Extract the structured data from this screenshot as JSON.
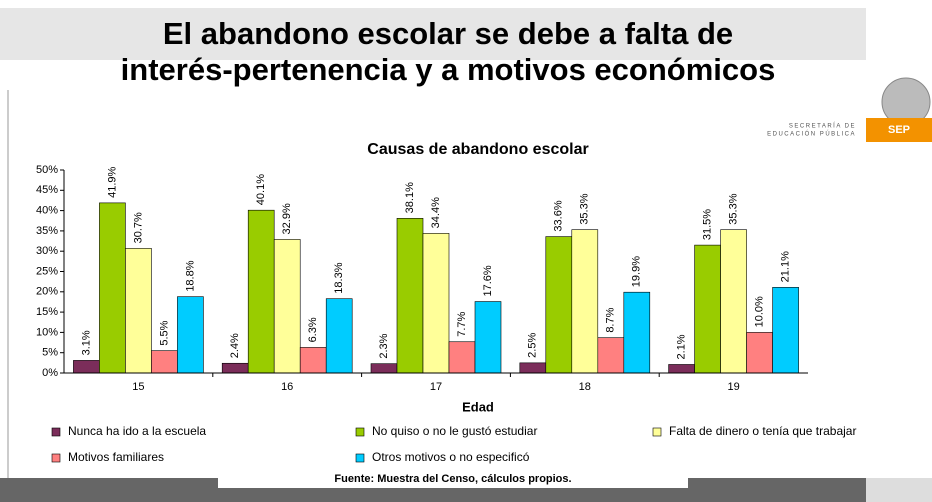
{
  "slide": {
    "title_line1": "El abandono escolar se debe a falta de",
    "title_line2": "interés-pertenencia y a motivos económicos",
    "agency_line1": "SECRETARÍA DE",
    "agency_line2": "EDUCACIÓN PÚBLICA",
    "logo": "SEP",
    "source": "Fuente: Muestra del Censo, cálculos propios."
  },
  "chart_data": {
    "type": "bar",
    "title": "Causas de abandono escolar",
    "x_label": "Edad",
    "categories": [
      "15",
      "16",
      "17",
      "18",
      "19"
    ],
    "ylim": [
      0,
      50
    ],
    "yticks": [
      {
        "value": 0,
        "label": "0%"
      },
      {
        "value": 5,
        "label": "5%"
      },
      {
        "value": 10,
        "label": "10%"
      },
      {
        "value": 15,
        "label": "15%"
      },
      {
        "value": 20,
        "label": "20%"
      },
      {
        "value": 25,
        "label": "25%"
      },
      {
        "value": 30,
        "label": "30%"
      },
      {
        "value": 35,
        "label": "35%"
      },
      {
        "value": 40,
        "label": "40%"
      },
      {
        "value": 45,
        "label": "45%"
      },
      {
        "value": 50,
        "label": "50%"
      }
    ],
    "series": [
      {
        "name": "Nunca ha ido a la escuela",
        "color": "#7b2d5a",
        "values": [
          3.1,
          2.4,
          2.3,
          2.5,
          2.1
        ],
        "value_labels": [
          "3.1%",
          "2.4%",
          "2.3%",
          "2.5%",
          "2.1%"
        ]
      },
      {
        "name": "No quiso o no le gustó estudiar",
        "color": "#99cc00",
        "values": [
          41.9,
          40.1,
          38.1,
          33.6,
          31.5
        ],
        "value_labels": [
          "41.9%",
          "40.1%",
          "38.1%",
          "33.6%",
          "31.5%"
        ]
      },
      {
        "name": "Falta de dinero o tenía que trabajar",
        "color": "#ffff99",
        "values": [
          30.7,
          32.9,
          34.4,
          35.3,
          35.3
        ],
        "value_labels": [
          "30.7%",
          "32.9%",
          "34.4%",
          "35.3%",
          "35.3%"
        ]
      },
      {
        "name": "Motivos familiares",
        "color": "#ff8080",
        "values": [
          5.5,
          6.3,
          7.7,
          8.7,
          10.0
        ],
        "value_labels": [
          "5.5%",
          "6.3%",
          "7.7%",
          "8.7%",
          "10.0%"
        ]
      },
      {
        "name": "Otros motivos o no especificó",
        "color": "#00ccff",
        "values": [
          18.8,
          18.3,
          17.6,
          19.9,
          21.1
        ],
        "value_labels": [
          "18.8%",
          "18.3%",
          "17.6%",
          "19.9%",
          "21.1%"
        ]
      }
    ]
  }
}
